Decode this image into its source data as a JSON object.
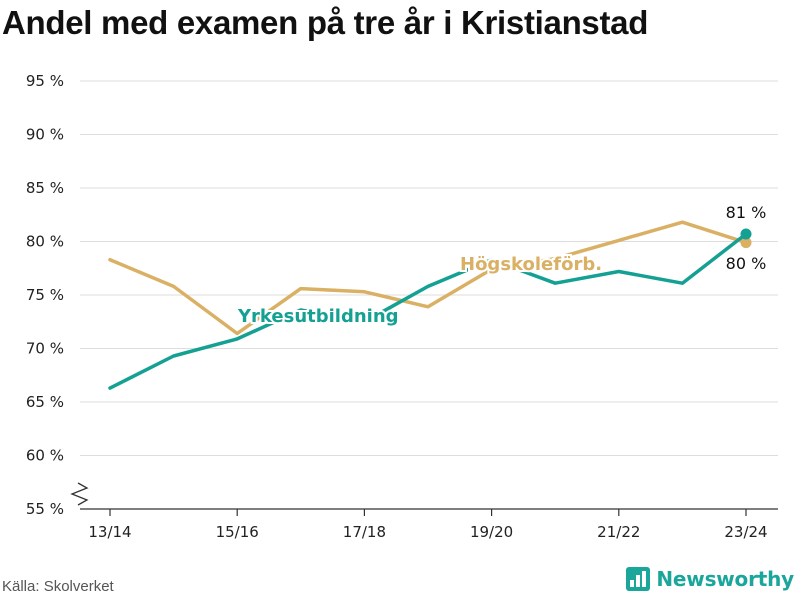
{
  "chart_data": {
    "type": "line",
    "title": "Andel med examen på tre år i Kristianstad",
    "categories": [
      "13/14",
      "14/15",
      "15/16",
      "16/17",
      "17/18",
      "18/19",
      "19/20",
      "20/21",
      "21/22",
      "22/23",
      "23/24"
    ],
    "x_tick_labels": [
      "13/14",
      "15/16",
      "17/18",
      "19/20",
      "21/22",
      "23/24"
    ],
    "y_tick_labels": [
      "55 %",
      "60 %",
      "65 %",
      "70 %",
      "75 %",
      "80 %",
      "85 %",
      "90 %",
      "95 %"
    ],
    "ylim": [
      55,
      95
    ],
    "y_axis_break": true,
    "grid": true,
    "series": [
      {
        "name": "Yrkesutbildning",
        "color": "#14a193",
        "values": [
          66.3,
          69.3,
          70.9,
          73.6,
          72.5,
          75.8,
          78.3,
          76.1,
          77.2,
          76.1,
          80.7
        ],
        "end_label": "81 %"
      },
      {
        "name": "Högskoleförb.",
        "color": "#d9b064",
        "values": [
          78.3,
          75.8,
          71.4,
          75.6,
          75.3,
          73.9,
          77.4,
          78.4,
          80.1,
          81.8,
          79.9
        ],
        "end_label": "80 %"
      }
    ],
    "source": "Källa: Skolverket"
  },
  "brand": {
    "name": "Newsworthy",
    "icon": "bar-chart-logo-icon"
  }
}
